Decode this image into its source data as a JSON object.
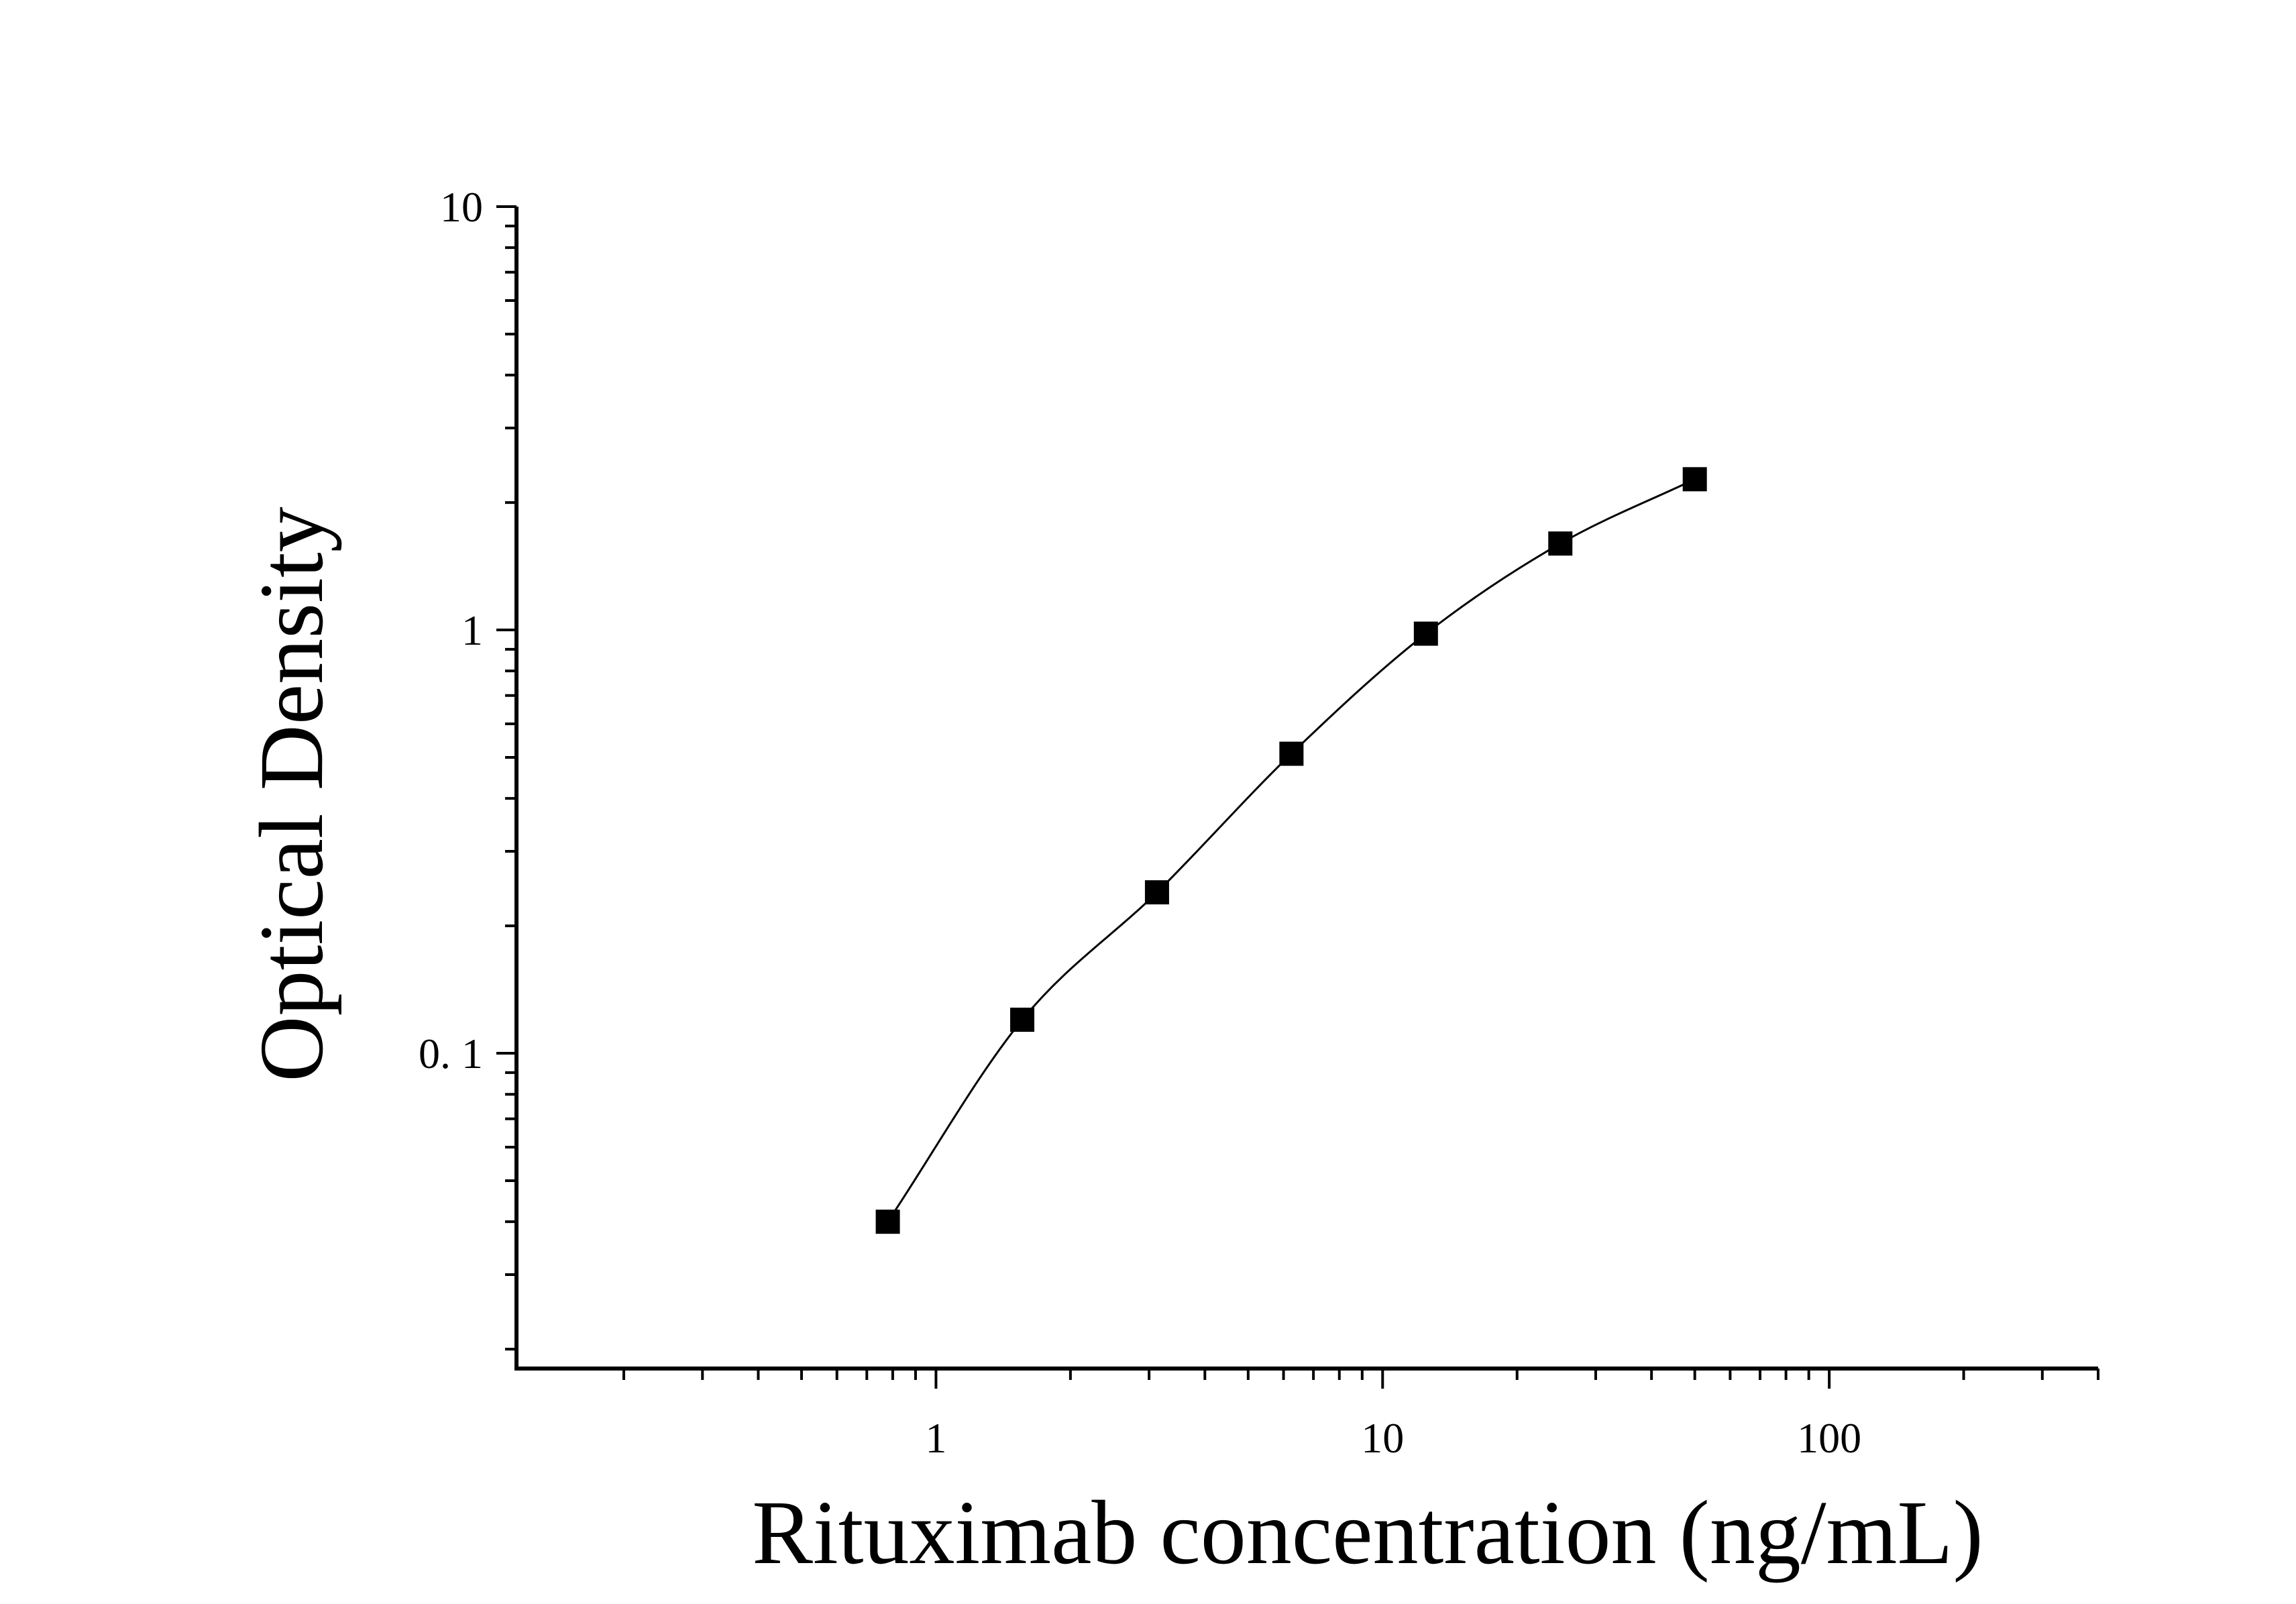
{
  "chart_data": {
    "type": "scatter",
    "title": "",
    "xlabel": "Rituximab concentration (ng/mL)",
    "ylabel": "Optical Density",
    "x_scale": "log",
    "y_scale": "log",
    "xlim": [
      0.115,
      400
    ],
    "ylim": [
      0.018,
      10
    ],
    "x_ticks": [
      {
        "value": 1,
        "label": "1"
      },
      {
        "value": 10,
        "label": "10"
      },
      {
        "value": 100,
        "label": "100"
      }
    ],
    "y_ticks": [
      {
        "value": 0.1,
        "label": "0. 1"
      },
      {
        "value": 1,
        "label": "1"
      },
      {
        "value": 10,
        "label": "10"
      }
    ],
    "grid": false,
    "legend": "none",
    "marker": "square",
    "marker_color": "#000000",
    "line_color": "#000000",
    "fit_line": true,
    "series": [
      {
        "x": [
          0.78,
          1.56,
          3.125,
          6.25,
          12.5,
          25,
          50
        ],
        "y": [
          0.04,
          0.12,
          0.24,
          0.51,
          0.98,
          1.6,
          2.27
        ]
      }
    ]
  }
}
